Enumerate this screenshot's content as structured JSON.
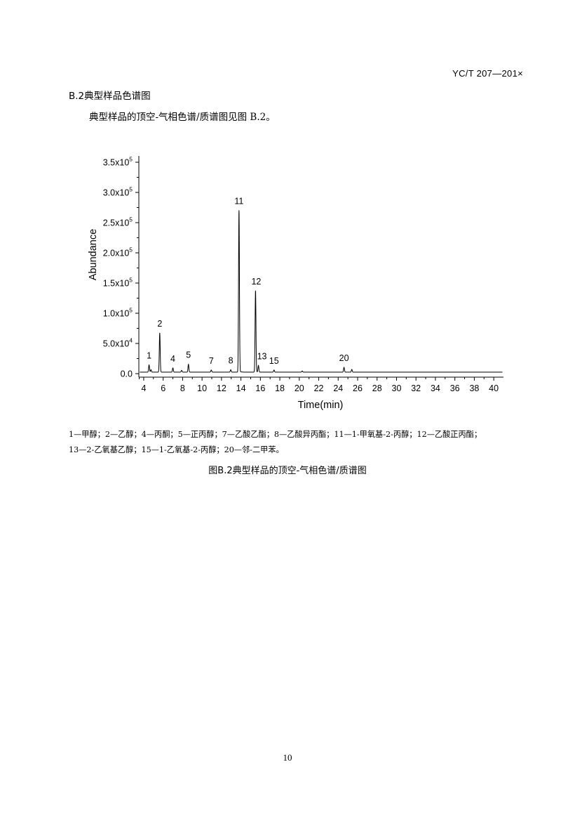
{
  "header": {
    "doc_code": "YC/T 207—201×"
  },
  "section": {
    "heading": "B.2典型样品色谱图",
    "intro": "典型样品的顶空-气相色谱/质谱图见图 B.2。"
  },
  "chart_data": {
    "type": "line",
    "xlabel": "Time(min)",
    "ylabel": "Abundance",
    "xlim": [
      3.5,
      41
    ],
    "ylim": [
      0,
      365000
    ],
    "x_ticks": [
      4,
      6,
      8,
      10,
      12,
      14,
      16,
      18,
      20,
      22,
      24,
      26,
      28,
      30,
      32,
      34,
      36,
      38,
      40
    ],
    "y_ticks": [
      {
        "value": 0,
        "mantissa": "0.0",
        "exp": ""
      },
      {
        "value": 50000,
        "mantissa": "5.0x10",
        "exp": "4"
      },
      {
        "value": 100000,
        "mantissa": "1.0x10",
        "exp": "5"
      },
      {
        "value": 150000,
        "mantissa": "1.5x10",
        "exp": "5"
      },
      {
        "value": 200000,
        "mantissa": "2.0x10",
        "exp": "5"
      },
      {
        "value": 250000,
        "mantissa": "2.5x10",
        "exp": "5"
      },
      {
        "value": 300000,
        "mantissa": "3.0x10",
        "exp": "5"
      },
      {
        "value": 350000,
        "mantissa": "3.5x10",
        "exp": "5"
      }
    ],
    "baseline": 2500,
    "peaks": [
      {
        "label": "1",
        "rt": 4.55,
        "height": 12000
      },
      {
        "label": "",
        "rt": 4.75,
        "height": 4000
      },
      {
        "label": "2",
        "rt": 5.65,
        "height": 65000
      },
      {
        "label": "4",
        "rt": 7.0,
        "height": 7000
      },
      {
        "label": "",
        "rt": 7.9,
        "height": 3000
      },
      {
        "label": "5",
        "rt": 8.6,
        "height": 13000
      },
      {
        "label": "7",
        "rt": 10.95,
        "height": 3500
      },
      {
        "label": "8",
        "rt": 12.95,
        "height": 4000
      },
      {
        "label": "11",
        "rt": 13.8,
        "height": 268000
      },
      {
        "label": "12",
        "rt": 15.5,
        "height": 135000
      },
      {
        "label": "13",
        "rt": 15.8,
        "height": 11000
      },
      {
        "label": "15",
        "rt": 17.4,
        "height": 3500
      },
      {
        "label": "",
        "rt": 20.3,
        "height": 2000
      },
      {
        "label": "20",
        "rt": 24.6,
        "height": 8000
      },
      {
        "label": "",
        "rt": 25.4,
        "height": 4500
      }
    ]
  },
  "legend": {
    "line1": "1—甲醇；2—乙醇；4—丙酮；5—正丙醇；7—乙酸乙酯；8—乙酸异丙酯；11—1-甲氧基-2-丙醇；12—乙酸正丙酯；",
    "line2": "13—2-乙氧基乙醇；15—1-乙氧基-2-丙醇；20—邻-二甲苯。"
  },
  "figure": {
    "caption": "图B.2典型样品的顶空-气相色谱/质谱图"
  },
  "footer": {
    "page_number": "10"
  }
}
